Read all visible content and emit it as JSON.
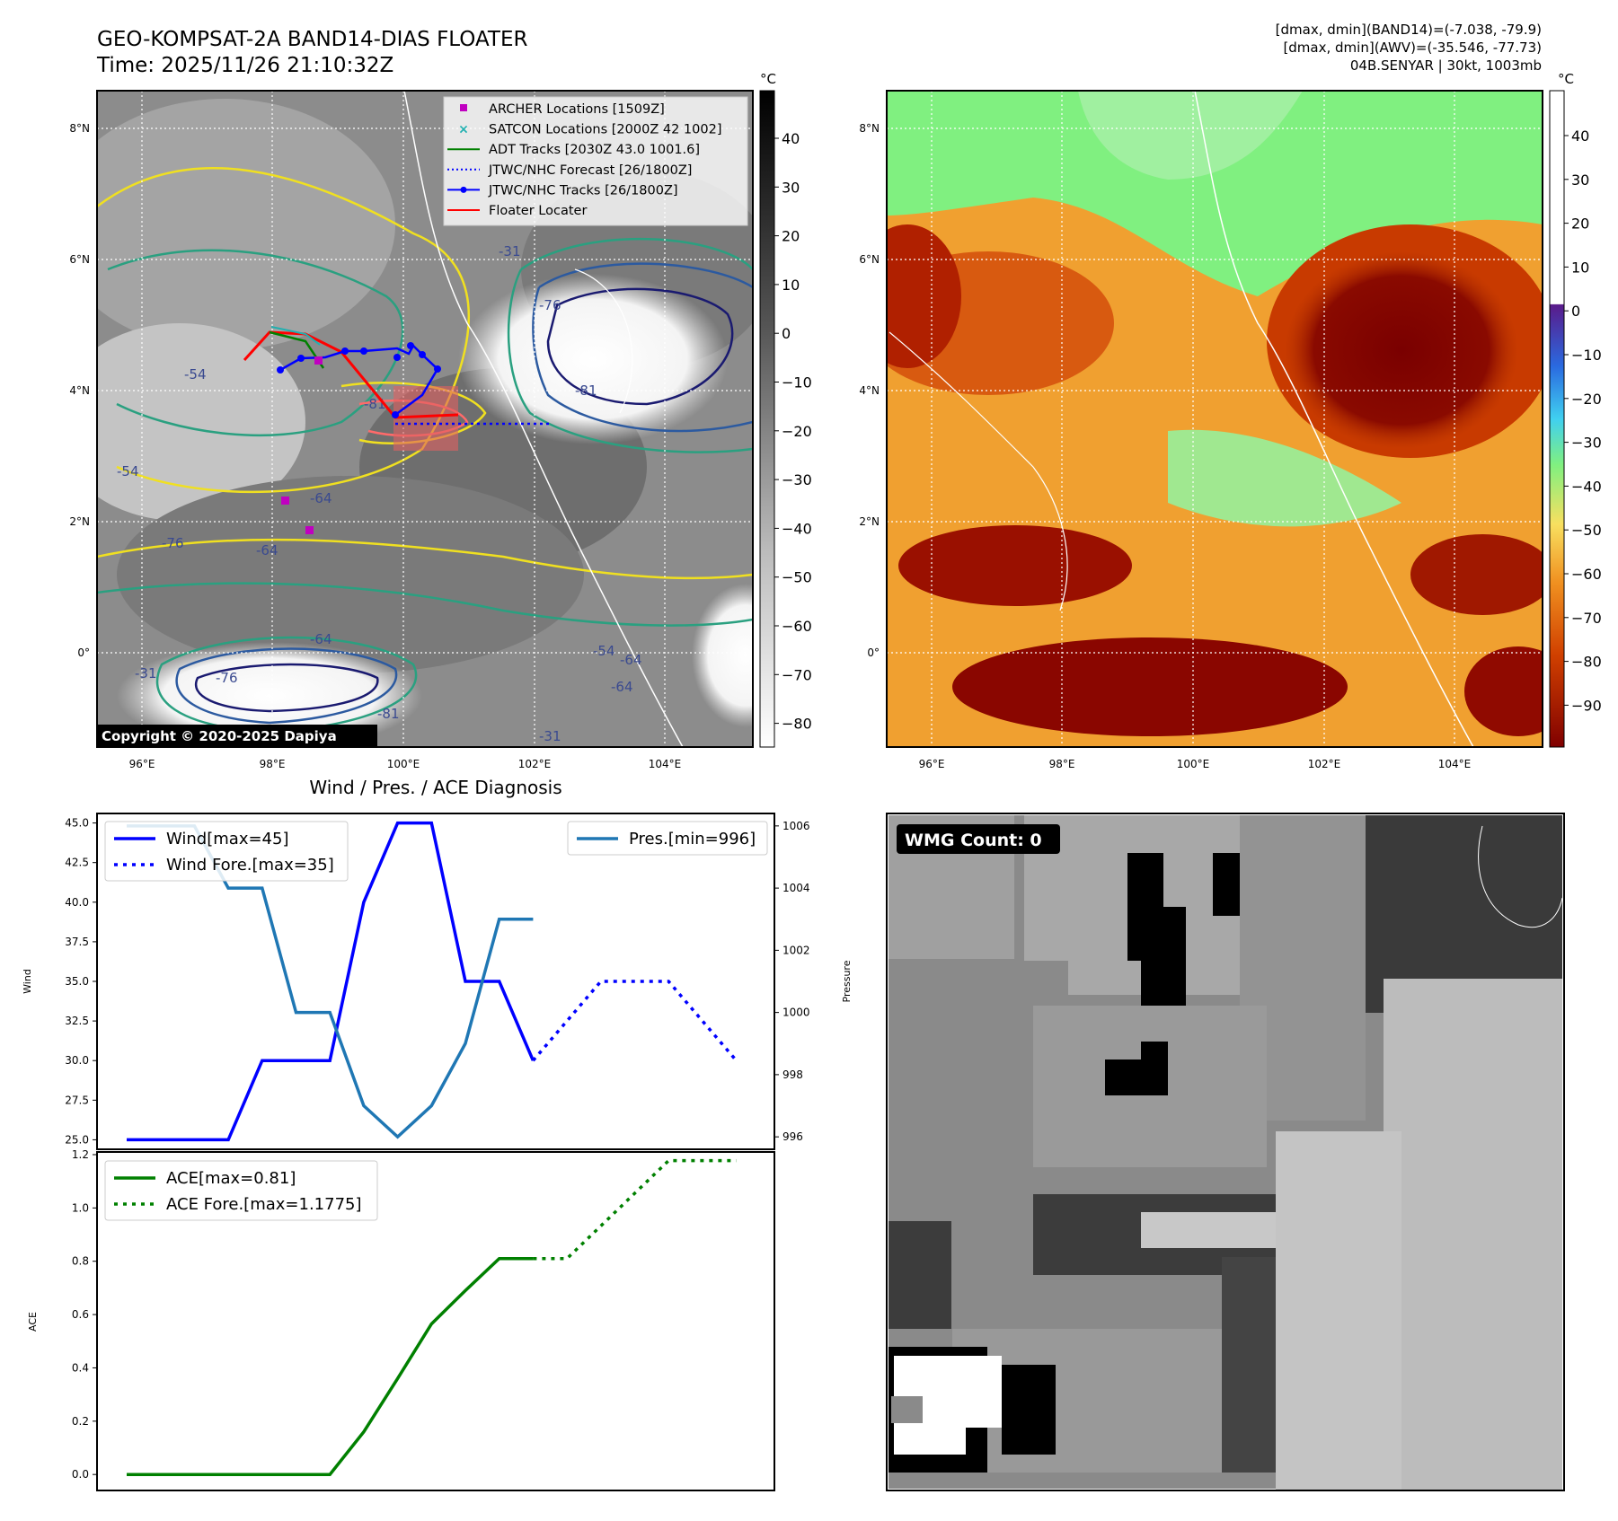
{
  "header": {
    "title_line1": "GEO-KOMPSAT-2A BAND14-DIAS FLOATER",
    "title_line2": "Time: 2025/11/26 21:10:32Z",
    "info_line1": "[dmax, dmin](BAND14)=(-7.038, -79.9)",
    "info_line2": "[dmax, dmin](AWV)=(-35.546, -77.73)",
    "info_line3": "04B.SENYAR | 30kt, 1003mb"
  },
  "copyright": "Copyright © 2020-2025 Dapiya",
  "map_axes": {
    "lon_labels": [
      "96°E",
      "98°E",
      "100°E",
      "102°E",
      "104°E"
    ],
    "lat_labels": [
      "8°N",
      "6°N",
      "4°N",
      "2°N",
      "0°"
    ]
  },
  "ir_legend": [
    {
      "label": "ARCHER Locations [1509Z]",
      "color": "#c000c0",
      "marker": "square"
    },
    {
      "label": "SATCON Locations [2000Z 42 1002]",
      "color": "#20b0b0",
      "marker": "x"
    },
    {
      "label": "ADT Tracks [2030Z 43.0 1001.6]",
      "color": "#008000",
      "marker": "line"
    },
    {
      "label": "JTWC/NHC Forecast [26/1800Z]",
      "color": "#0000ff",
      "marker": "dotted"
    },
    {
      "label": "JTWC/NHC Tracks [26/1800Z]",
      "color": "#0000ff",
      "marker": "line-dot"
    },
    {
      "label": "Floater Locater",
      "color": "#ff0000",
      "marker": "line"
    }
  ],
  "contour_labels": [
    "-76",
    "-81",
    "-54",
    "-64",
    "-31",
    "-76",
    "-64",
    "-81",
    "-54",
    "-64",
    "-31",
    "-76",
    "-64",
    "-54",
    "-81",
    "-64",
    "-31"
  ],
  "colorbar_ir": {
    "unit": "°C",
    "ticks": [
      "40",
      "30",
      "20",
      "10",
      "0",
      "−10",
      "−20",
      "−30",
      "−40",
      "−50",
      "−60",
      "−70",
      "−80"
    ]
  },
  "colorbar_awv": {
    "unit": "°C",
    "ticks": [
      "40",
      "30",
      "20",
      "10",
      "0",
      "−10",
      "−20",
      "−30",
      "−40",
      "−50",
      "−60",
      "−70",
      "−80",
      "−90"
    ]
  },
  "wmg": {
    "label": "WMG Count: 0"
  },
  "chart_data": [
    {
      "type": "line",
      "title": "Wind / Pres. / ACE Diagnosis",
      "ylabel": "Wind",
      "ylabel_right": "Pressure",
      "ylim": [
        24.4,
        45.6
      ],
      "ylim_right": [
        995.6,
        1006.4
      ],
      "yticks": [
        "45.0",
        "42.5",
        "40.0",
        "37.5",
        "35.0",
        "32.5",
        "30.0",
        "27.5",
        "25.0"
      ],
      "yticks_right": [
        "1006",
        "1004",
        "1002",
        "1000",
        "998",
        "996"
      ],
      "legend_left": [
        "Wind[max=45]",
        "Wind Fore.[max=35]"
      ],
      "legend_right": [
        "Pres.[min=996]"
      ],
      "series": [
        {
          "name": "Wind[max=45]",
          "color": "#0000ff",
          "style": "solid",
          "axis": "left",
          "x": [
            0,
            1,
            2,
            3,
            4,
            5,
            6,
            7,
            8,
            9,
            10,
            11,
            12
          ],
          "values": [
            25,
            25,
            25,
            25,
            30,
            30,
            30,
            40,
            45,
            45,
            35,
            35,
            30
          ]
        },
        {
          "name": "Wind Fore.[max=35]",
          "color": "#0000ff",
          "style": "dotted",
          "axis": "left",
          "x": [
            12,
            14,
            16,
            18
          ],
          "values": [
            30,
            35,
            35,
            30
          ]
        },
        {
          "name": "Pres.[min=996]",
          "color": "#1f77b4",
          "style": "solid",
          "axis": "right",
          "x": [
            0,
            1,
            2,
            3,
            4,
            5,
            6,
            7,
            8,
            9,
            10,
            11,
            12
          ],
          "values": [
            1006,
            1006,
            1006,
            1004,
            1004,
            1000,
            1000,
            997,
            996,
            997,
            999,
            1003,
            1003
          ]
        }
      ]
    },
    {
      "type": "line",
      "ylabel": "ACE",
      "ylim": [
        -0.06,
        1.21
      ],
      "yticks": [
        "1.2",
        "1.0",
        "0.8",
        "0.6",
        "0.4",
        "0.2",
        "0.0"
      ],
      "legend": [
        "ACE[max=0.81]",
        "ACE Fore.[max=1.1775]"
      ],
      "series": [
        {
          "name": "ACE[max=0.81]",
          "color": "#008000",
          "style": "solid",
          "x": [
            0,
            1,
            2,
            3,
            4,
            5,
            6,
            7,
            8,
            9,
            10,
            11,
            12
          ],
          "values": [
            0,
            0,
            0,
            0,
            0,
            0,
            0,
            0.16,
            0.36,
            0.565,
            0.69,
            0.81,
            0.81
          ]
        },
        {
          "name": "ACE Fore.[max=1.1775]",
          "color": "#008000",
          "style": "dotted",
          "x": [
            12,
            13,
            14,
            15,
            16,
            17,
            18
          ],
          "values": [
            0.81,
            0.81,
            0.9325,
            1.055,
            1.1775,
            1.1775,
            1.1775
          ]
        }
      ]
    }
  ]
}
